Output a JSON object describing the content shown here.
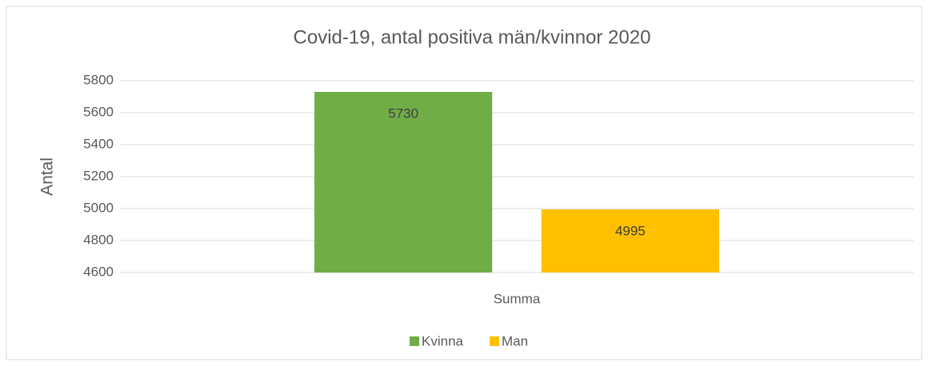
{
  "chart_data": {
    "type": "bar",
    "title": "Covid-19, antal positiva män/kvinnor 2020",
    "y_label": "Antal",
    "categories": [
      "Summa"
    ],
    "series": [
      {
        "name": "Kvinna",
        "color": "#70ad47",
        "values": [
          5730
        ]
      },
      {
        "name": "Man",
        "color": "#ffc000",
        "values": [
          4995
        ]
      }
    ],
    "ylim": [
      4600,
      5800
    ],
    "yticks": [
      4600,
      4800,
      5000,
      5200,
      5400,
      5600,
      5800
    ],
    "grid": true,
    "legend": "bottom"
  }
}
